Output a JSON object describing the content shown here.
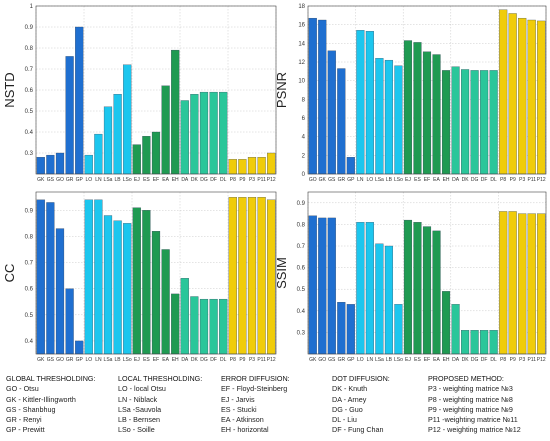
{
  "chart_data": [
    {
      "type": "bar",
      "ylabel": "NSTD",
      "ylim": [
        0.2,
        1.0
      ],
      "yticks": [
        0.3,
        0.4,
        0.5,
        0.6,
        0.7,
        0.8,
        0.9,
        1
      ],
      "categories": [
        "GK",
        "GS",
        "GO",
        "GR",
        "GP",
        "LO",
        "LN",
        "LSa",
        "LB",
        "LSo",
        "EJ",
        "ES",
        "EF",
        "EA",
        "EH",
        "DA",
        "DK",
        "DG",
        "DF",
        "DL",
        "P8",
        "P9",
        "P3",
        "P11",
        "P12"
      ],
      "values": [
        0.28,
        0.29,
        0.3,
        0.76,
        0.9,
        0.29,
        0.39,
        0.52,
        0.58,
        0.72,
        0.34,
        0.38,
        0.4,
        0.62,
        0.79,
        0.55,
        0.58,
        0.59,
        0.59,
        0.59,
        0.27,
        0.27,
        0.28,
        0.28,
        0.3
      ]
    },
    {
      "type": "bar",
      "ylabel": "PSNR",
      "ylim": [
        0,
        18
      ],
      "yticks": [
        0,
        2,
        4,
        6,
        8,
        10,
        12,
        14,
        16,
        18
      ],
      "categories": [
        "GO",
        "GK",
        "GS",
        "GR",
        "GP",
        "LN",
        "LO",
        "LSa",
        "LB",
        "LSo",
        "EJ",
        "ES",
        "EF",
        "EA",
        "EH",
        "DA",
        "DK",
        "DG",
        "DF",
        "DL",
        "P8",
        "P9",
        "P3",
        "P11",
        "P12"
      ],
      "values": [
        16.7,
        16.5,
        13.2,
        11.3,
        1.8,
        15.4,
        15.3,
        12.4,
        12.2,
        11.6,
        14.3,
        14.1,
        13.1,
        12.8,
        11.1,
        11.5,
        11.2,
        11.1,
        11.1,
        11.1,
        17.6,
        17.2,
        16.7,
        16.5,
        16.4
      ]
    },
    {
      "type": "bar",
      "ylabel": "CC",
      "ylim": [
        0.35,
        0.97
      ],
      "yticks": [
        0.4,
        0.5,
        0.6,
        0.7,
        0.8,
        0.9
      ],
      "categories": [
        "GK",
        "GS",
        "GO",
        "GR",
        "GP",
        "LO",
        "LN",
        "LSa",
        "LB",
        "LSo",
        "EJ",
        "ES",
        "EF",
        "EA",
        "EH",
        "DA",
        "DK",
        "DG",
        "DF",
        "DL",
        "P8",
        "P9",
        "P3",
        "P11",
        "P12"
      ],
      "values": [
        0.94,
        0.93,
        0.83,
        0.6,
        0.4,
        0.94,
        0.94,
        0.88,
        0.86,
        0.85,
        0.91,
        0.9,
        0.82,
        0.75,
        0.58,
        0.64,
        0.57,
        0.56,
        0.56,
        0.56,
        0.95,
        0.95,
        0.95,
        0.95,
        0.94
      ]
    },
    {
      "type": "bar",
      "ylabel": "SSIM",
      "ylim": [
        0.2,
        0.95
      ],
      "yticks": [
        0.3,
        0.4,
        0.5,
        0.6,
        0.7,
        0.8,
        0.9
      ],
      "categories": [
        "GK",
        "GO",
        "GS",
        "GR",
        "GP",
        "LO",
        "LN",
        "LSa",
        "LB",
        "LSo",
        "EJ",
        "ES",
        "EF",
        "EA",
        "EH",
        "DA",
        "DK",
        "DG",
        "DF",
        "DL",
        "P8",
        "P9",
        "P3",
        "P11",
        "P12"
      ],
      "values": [
        0.84,
        0.83,
        0.83,
        0.44,
        0.43,
        0.81,
        0.81,
        0.71,
        0.7,
        0.43,
        0.82,
        0.81,
        0.79,
        0.77,
        0.49,
        0.43,
        0.31,
        0.31,
        0.31,
        0.31,
        0.86,
        0.86,
        0.85,
        0.85,
        0.85
      ]
    }
  ],
  "legend": {
    "global": {
      "heading": "GLOBAL THRESHOLDING:",
      "items": [
        "GO - Otsu",
        "GK - Kittler-Illingworth",
        "GS - Shanbhug",
        "GR - Renyi",
        "GP - Prewitt"
      ]
    },
    "local": {
      "heading": "LOCAL THRESHOLDING:",
      "items": [
        "LO - local Otsu",
        "LN - Niblack",
        "LSa -Sauvola",
        "LB - Bernsen",
        "LSo - Soille"
      ]
    },
    "error": {
      "heading": "ERROR DIFFUSION:",
      "items": [
        "EF - Floyd-Steinberg",
        "EJ - Jarvis",
        "ES - Stucki",
        "EA - Atkinson",
        "EH - horizontal"
      ]
    },
    "dot": {
      "heading": "DOT DIFFUSION:",
      "items": [
        "DK - Knuth",
        "DA - Arney",
        "DG - Guo",
        "DL - Liu",
        "DF - Fung Chan"
      ]
    },
    "proposed": {
      "heading": "PROPOSED METHOD:",
      "items": [
        "P3 - weighting matrice №3",
        "P8 - weighting matrice №8",
        "P9 - weighting matrice №9",
        "P11 -weighting matrice №11",
        "P12 - weighting matrice №12"
      ]
    }
  },
  "colors": {
    "global": "#1f6fd0",
    "local": "#1cc6ee",
    "error": "#1f9a52",
    "dot": "#2ac69a",
    "proposed": "#f0cc0a",
    "grid": "#c8c8c8"
  }
}
